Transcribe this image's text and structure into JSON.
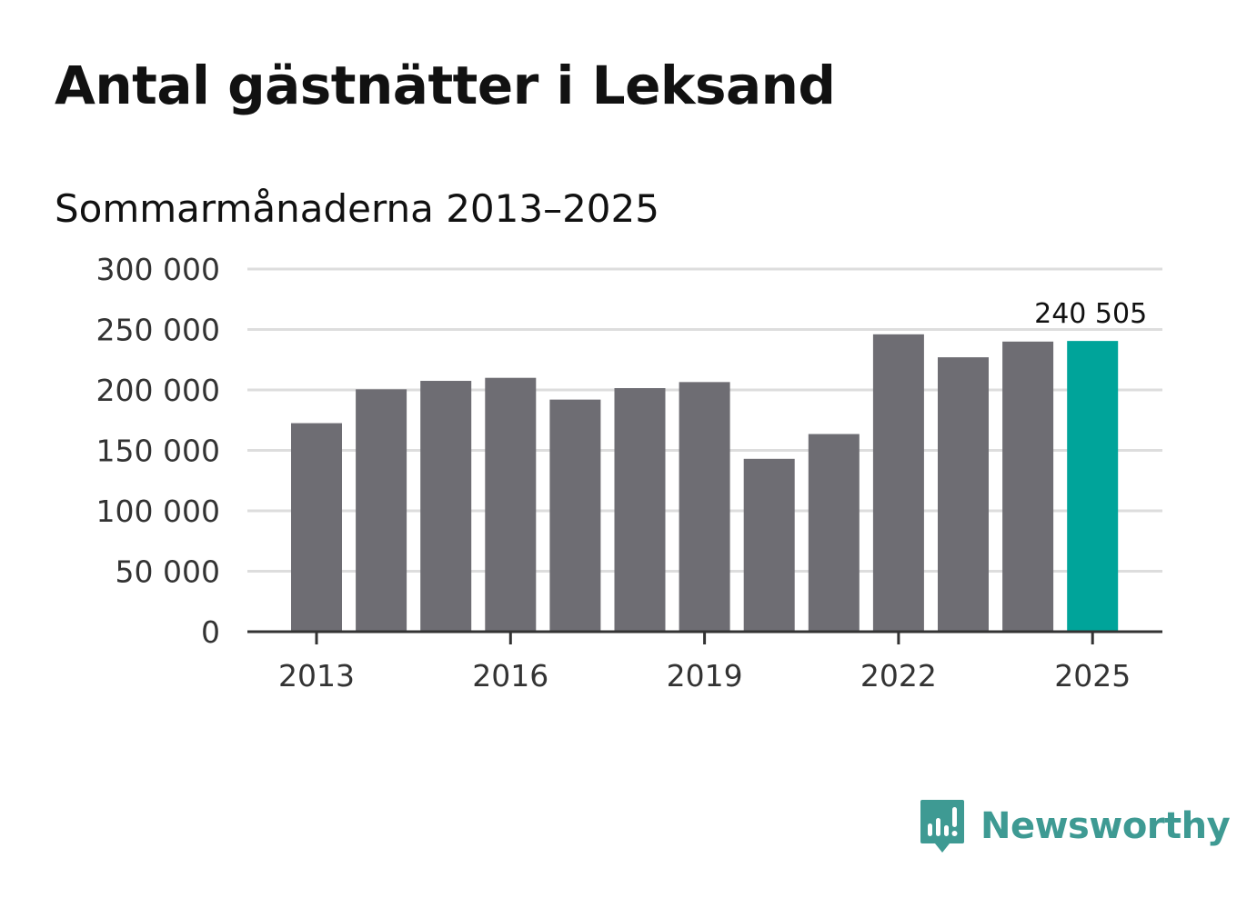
{
  "title": "Antal gästnätter i Leksand",
  "subtitle": "Sommarmånaderna 2013–2025",
  "brand": {
    "name": "Newsworthy",
    "color": "#3e9a93",
    "icon": "newsworthy-logo-icon"
  },
  "colors": {
    "bar": "#6e6d73",
    "highlight": "#00a49a",
    "grid": "#dddddd",
    "axis": "#333333"
  },
  "chart_data": {
    "type": "bar",
    "title": "Antal gästnätter i Leksand",
    "subtitle": "Sommarmånaderna 2013–2025",
    "categories": [
      "2013",
      "2014",
      "2015",
      "2016",
      "2017",
      "2018",
      "2019",
      "2020",
      "2021",
      "2022",
      "2023",
      "2024",
      "2025"
    ],
    "values": [
      172500,
      200500,
      207500,
      210000,
      192000,
      201500,
      206500,
      143000,
      163500,
      246000,
      227000,
      240000,
      240505
    ],
    "highlight_index": 12,
    "highlight_label": "240 505",
    "x_tick_labels": [
      "2013",
      "2016",
      "2019",
      "2022",
      "2025"
    ],
    "y_tick_labels": [
      "0",
      "50 000",
      "100 000",
      "150 000",
      "200 000",
      "250 000",
      "300 000"
    ],
    "y_ticks": [
      0,
      50000,
      100000,
      150000,
      200000,
      250000,
      300000
    ],
    "ylim": [
      0,
      300000
    ],
    "grid": true,
    "xlabel": "",
    "ylabel": ""
  }
}
